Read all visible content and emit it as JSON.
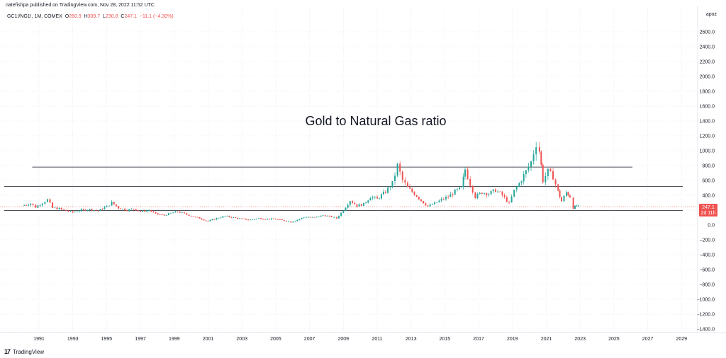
{
  "header": {
    "published": "natefishpa published on TradingView.com, Nov 28, 2022 11:52 UTC"
  },
  "ohlc": {
    "symbol": "GC1!/NG1!, 1M, COMEX",
    "o_label": "O",
    "o": "260.9",
    "h_label": "H",
    "h": "309.7",
    "l_label": "L",
    "l": "230.8",
    "c_label": "C",
    "c": "247.1",
    "change": "−11.1 (−4.30%)"
  },
  "axis_unit_label": "apoz",
  "price_badge": {
    "value": "247.1",
    "countdown": "2d 11h",
    "color": "#ef5350"
  },
  "footer": {
    "logo_text": "TradingView",
    "logo_mark": "17"
  },
  "colors": {
    "up": "#26a69a",
    "down": "#ef5350",
    "line": "#131722",
    "grid": "#e0e3eb"
  },
  "chart_data": {
    "type": "candlestick",
    "title": "Gold to Natural Gas ratio",
    "x_ticks": [
      "1991",
      "1993",
      "1995",
      "1997",
      "1999",
      "2001",
      "2003",
      "2005",
      "2007",
      "2009",
      "2011",
      "2013",
      "2015",
      "2017",
      "2019",
      "2021",
      "2023",
      "2025",
      "2027",
      "2029"
    ],
    "y_ticks": [
      2600,
      2400,
      2200,
      2000,
      1800,
      1600,
      1400,
      1200,
      1000,
      800,
      600,
      400,
      200,
      0,
      -200,
      -400,
      -600,
      -800,
      -1000,
      -1200,
      -1400
    ],
    "y_tick_labels": [
      "2600.0",
      "2400.0",
      "2200.0",
      "2000.0",
      "1800.0",
      "1600.0",
      "1400.0",
      "1200.0",
      "1000.0",
      "800.0",
      "600.0",
      "400.0",
      "200.0",
      "0.0",
      "−200.0",
      "−400.0",
      "−600.0",
      "−800.0",
      "−1000.0",
      "−1200.0",
      "−1400.0"
    ],
    "ylim": [
      -1450,
      2850
    ],
    "xlim": [
      1990.0,
      2030.0
    ],
    "horizontal_lines": [
      {
        "value": 780,
        "x_start": 1990.6,
        "x_end": 2026.1
      },
      {
        "value": 520,
        "x_start": 1990.0,
        "x_end": 2030.0
      },
      {
        "value": 195,
        "x_start": 1990.0,
        "x_end": 2030.0
      }
    ],
    "last_price_line": 247.1,
    "series_points": [
      [
        1990.0,
        260
      ],
      [
        1990.5,
        290
      ],
      [
        1990.8,
        240
      ],
      [
        1991.2,
        300
      ],
      [
        1991.5,
        340
      ],
      [
        1991.8,
        230
      ],
      [
        1992.2,
        220
      ],
      [
        1992.6,
        190
      ],
      [
        1993.0,
        170
      ],
      [
        1993.5,
        200
      ],
      [
        1994.0,
        210
      ],
      [
        1994.5,
        190
      ],
      [
        1995.0,
        250
      ],
      [
        1995.3,
        300
      ],
      [
        1995.7,
        230
      ],
      [
        1996.2,
        200
      ],
      [
        1996.6,
        220
      ],
      [
        1997.0,
        180
      ],
      [
        1997.5,
        200
      ],
      [
        1997.9,
        150
      ],
      [
        1998.4,
        130
      ],
      [
        1998.8,
        160
      ],
      [
        1999.2,
        180
      ],
      [
        1999.6,
        150
      ],
      [
        2000.0,
        120
      ],
      [
        2000.5,
        90
      ],
      [
        2001.0,
        50
      ],
      [
        2001.5,
        90
      ],
      [
        2002.0,
        120
      ],
      [
        2002.5,
        100
      ],
      [
        2003.0,
        80
      ],
      [
        2003.5,
        70
      ],
      [
        2004.0,
        90
      ],
      [
        2004.5,
        80
      ],
      [
        2005.0,
        80
      ],
      [
        2005.5,
        60
      ],
      [
        2005.9,
        40
      ],
      [
        2006.4,
        80
      ],
      [
        2006.8,
        110
      ],
      [
        2007.3,
        100
      ],
      [
        2007.8,
        130
      ],
      [
        2008.3,
        110
      ],
      [
        2008.6,
        90
      ],
      [
        2009.0,
        200
      ],
      [
        2009.4,
        330
      ],
      [
        2009.8,
        260
      ],
      [
        2010.2,
        280
      ],
      [
        2010.6,
        380
      ],
      [
        2011.0,
        350
      ],
      [
        2011.5,
        450
      ],
      [
        2011.9,
        560
      ],
      [
        2012.2,
        800
      ],
      [
        2012.5,
        600
      ],
      [
        2012.8,
        500
      ],
      [
        2013.2,
        420
      ],
      [
        2013.6,
        330
      ],
      [
        2014.0,
        250
      ],
      [
        2014.4,
        290
      ],
      [
        2014.8,
        340
      ],
      [
        2015.2,
        380
      ],
      [
        2015.6,
        450
      ],
      [
        2016.0,
        500
      ],
      [
        2016.2,
        750
      ],
      [
        2016.5,
        550
      ],
      [
        2016.8,
        380
      ],
      [
        2017.2,
        440
      ],
      [
        2017.6,
        420
      ],
      [
        2018.0,
        470
      ],
      [
        2018.4,
        400
      ],
      [
        2018.8,
        290
      ],
      [
        2019.1,
        460
      ],
      [
        2019.4,
        560
      ],
      [
        2019.8,
        720
      ],
      [
        2020.1,
        850
      ],
      [
        2020.4,
        1100
      ],
      [
        2020.6,
        1000
      ],
      [
        2020.8,
        600
      ],
      [
        2021.1,
        720
      ],
      [
        2021.4,
        650
      ],
      [
        2021.7,
        450
      ],
      [
        2021.9,
        320
      ],
      [
        2022.2,
        440
      ],
      [
        2022.4,
        380
      ],
      [
        2022.6,
        230
      ],
      [
        2022.8,
        260
      ],
      [
        2022.9,
        247.1
      ]
    ]
  }
}
